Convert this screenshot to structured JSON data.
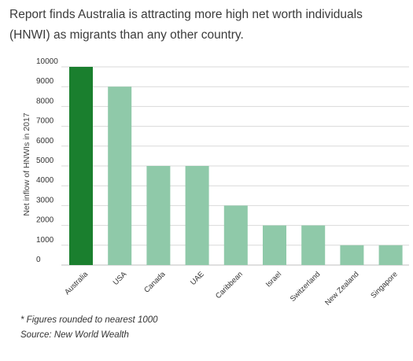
{
  "header": {
    "title": "Report finds Australia is attracting more high net worth individuals (HNWI) as migrants than any other country."
  },
  "notes": {
    "footnote": "* Figures rounded to nearest 1000",
    "source": "Source:  New World Wealth"
  },
  "chart_data": {
    "type": "bar",
    "title": "",
    "xlabel": "",
    "ylabel": "Net inflow of HNWIs in 2017",
    "categories": [
      "Australia",
      "USA",
      "Canada",
      "UAE",
      "Caribbean",
      "Israel",
      "Switzerland",
      "New Zealand",
      "Singapore"
    ],
    "values": [
      10000,
      9000,
      5000,
      5000,
      3000,
      2000,
      2000,
      1000,
      1000
    ],
    "ylim": [
      0,
      10000
    ],
    "yticks": [
      0,
      1000,
      2000,
      3000,
      4000,
      5000,
      6000,
      7000,
      8000,
      9000,
      10000
    ],
    "grid": true,
    "legend": "none",
    "colors": {
      "highlight": "#1a7f2e",
      "bar": "#8fc9a9",
      "grid": "#d9d9d9"
    }
  }
}
